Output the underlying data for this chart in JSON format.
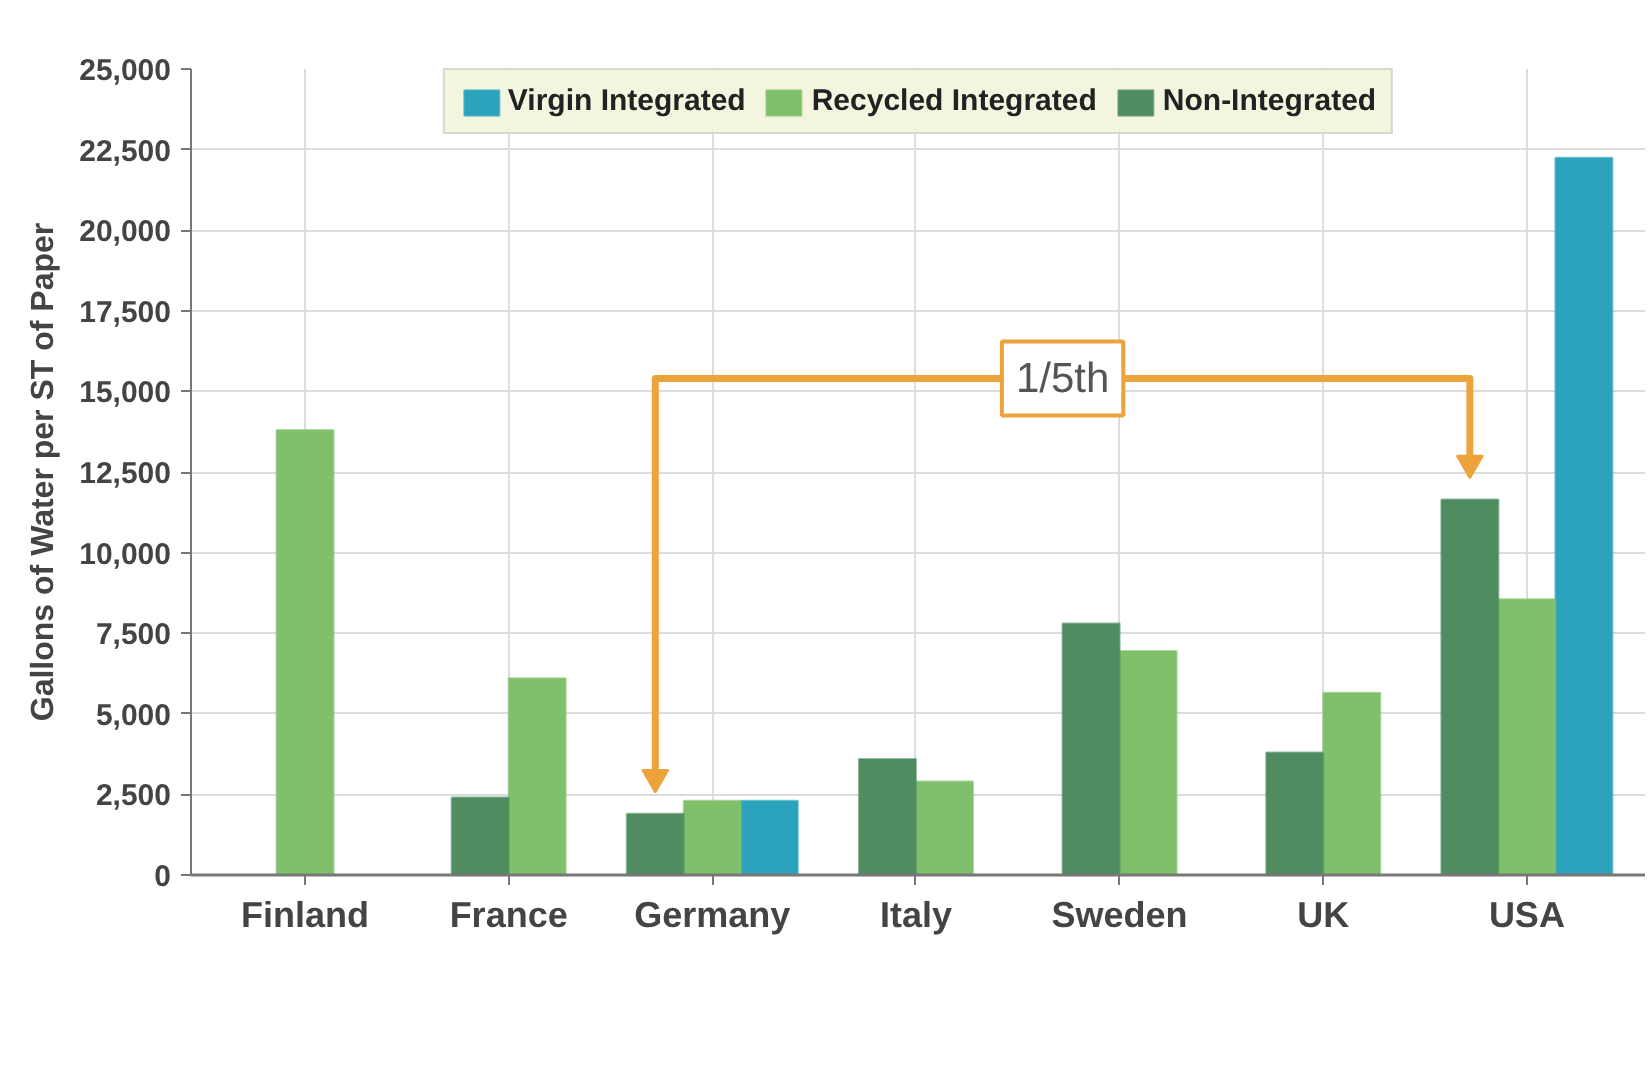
{
  "chart_data": {
    "type": "bar",
    "categories": [
      "Finland",
      "France",
      "Germany",
      "Italy",
      "Sweden",
      "UK",
      "USA"
    ],
    "series": [
      {
        "name": "Virgin Integrated",
        "color": "#2ba3bd",
        "values": [
          null,
          null,
          2300,
          null,
          null,
          null,
          22250
        ]
      },
      {
        "name": "Recycled Integrated",
        "color": "#80c06a",
        "values": [
          13800,
          6100,
          2300,
          2900,
          6950,
          5650,
          8550
        ]
      },
      {
        "name": "Non-Integrated",
        "color": "#4f8c60",
        "values": [
          null,
          2400,
          1900,
          3600,
          7800,
          3800,
          11650
        ]
      }
    ],
    "ylabel": "Gallons of Water per ST of Paper",
    "ylim": [
      0,
      25000
    ],
    "yticks": [
      0,
      {
        "value": 2500,
        "label": "2,500"
      },
      {
        "value": 5000,
        "label": "5,000"
      },
      {
        "value": 7500,
        "label": "7,500"
      },
      {
        "value": 10000,
        "label": "10,000"
      },
      {
        "value": 12500,
        "label": "12,500"
      },
      {
        "value": 15000,
        "label": "15,000"
      },
      {
        "value": 17500,
        "label": "17,500"
      },
      {
        "value": 20000,
        "label": "20,000"
      },
      {
        "value": 22500,
        "label": "22,500"
      },
      {
        "value": 25000,
        "label": "25,000"
      }
    ],
    "grid": true,
    "legend": "top",
    "annotations": [
      "1/5th"
    ]
  }
}
